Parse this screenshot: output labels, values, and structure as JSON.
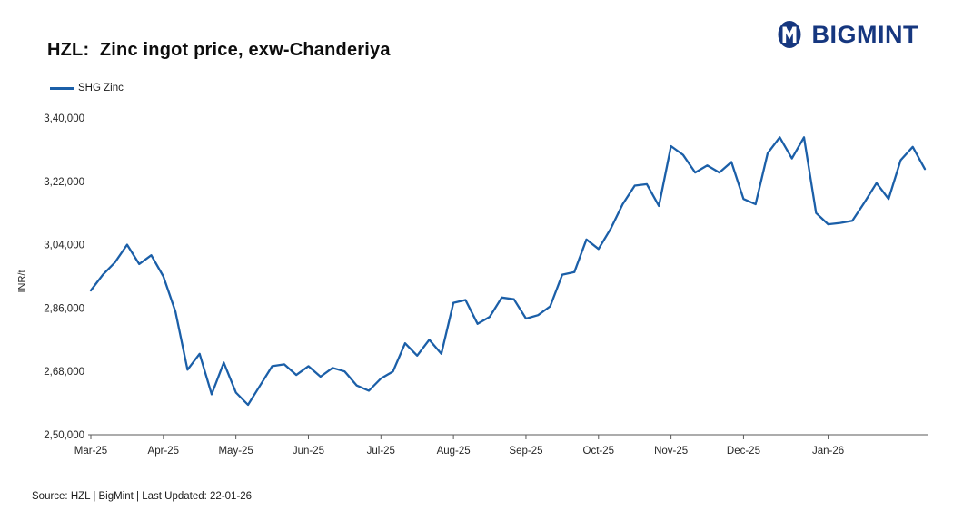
{
  "header": {
    "title": "HZL:  Zinc ingot price, exw-Chanderiya",
    "brand": "BIGMINT"
  },
  "legend": {
    "label": "SHG Zinc"
  },
  "chart_data": {
    "type": "line",
    "title": "HZL: Zinc ingot price, exw-Chanderiya",
    "xlabel": "",
    "ylabel": "INR/t",
    "ylim": [
      250000,
      340000
    ],
    "yticks": [
      250000,
      268000,
      286000,
      304000,
      322000,
      340000
    ],
    "ytick_labels": [
      "2,50,000",
      "2,68,000",
      "2,86,000",
      "3,04,000",
      "3,22,000",
      "3,40,000"
    ],
    "xtick_labels": [
      "Mar-25",
      "Apr-25",
      "May-25",
      "Jun-25",
      "Jul-25",
      "Aug-25",
      "Sep-25",
      "Oct-25",
      "Nov-25",
      "Dec-25",
      "Jan-26"
    ],
    "xtick_indices": [
      0,
      6,
      12,
      18,
      24,
      30,
      36,
      42,
      48,
      54,
      61
    ],
    "grid": false,
    "legend_position": "top-left",
    "series": [
      {
        "name": "SHG Zinc",
        "color": "#1b5fa8",
        "values": [
          291000,
          295500,
          299000,
          304000,
          298500,
          301000,
          295000,
          285000,
          268500,
          273000,
          261500,
          270500,
          262000,
          258500,
          264000,
          269500,
          270000,
          267000,
          269500,
          266500,
          269000,
          268000,
          264000,
          262500,
          266000,
          268000,
          276000,
          272500,
          277000,
          273000,
          287500,
          288300,
          281500,
          283500,
          289000,
          288500,
          283000,
          284000,
          286500,
          295500,
          296200,
          305500,
          302800,
          308500,
          315500,
          320800,
          321200,
          315000,
          332000,
          329500,
          324500,
          326500,
          324500,
          327500,
          317000,
          315500,
          330000,
          334500,
          328500,
          334500,
          313000,
          309800,
          310200,
          310800,
          316000,
          321500,
          317000,
          328000,
          331800,
          325500
        ]
      }
    ]
  },
  "footer": {
    "source_text": "Source: HZL | BigMint | Last Updated: 22-01-26"
  },
  "colors": {
    "accent": "#1b5fa8",
    "brand_navy": "#16377f",
    "axis": "#595959",
    "text": "#1a1a1a"
  }
}
